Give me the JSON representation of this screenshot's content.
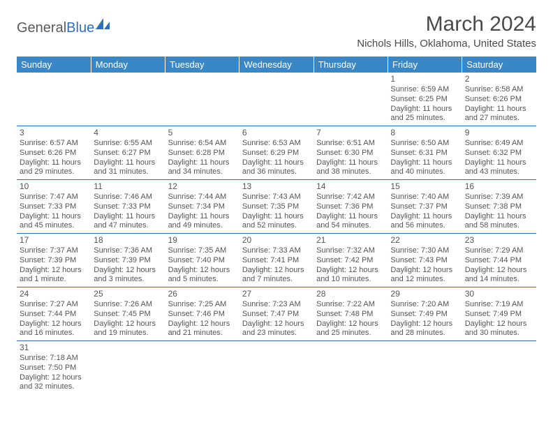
{
  "brand": {
    "text1": "General",
    "text2": "Blue",
    "logo_color": "#2f6fb5"
  },
  "title": "March 2024",
  "location": "Nichols Hills, Oklahoma, United States",
  "header_bg": "#3a87c8",
  "header_fg": "#ffffff",
  "border_color": "#2f6fb5",
  "text_color": "#555555",
  "days": [
    "Sunday",
    "Monday",
    "Tuesday",
    "Wednesday",
    "Thursday",
    "Friday",
    "Saturday"
  ],
  "weeks": [
    [
      null,
      null,
      null,
      null,
      null,
      {
        "n": "1",
        "sr": "Sunrise: 6:59 AM",
        "ss": "Sunset: 6:25 PM",
        "d1": "Daylight: 11 hours",
        "d2": "and 25 minutes."
      },
      {
        "n": "2",
        "sr": "Sunrise: 6:58 AM",
        "ss": "Sunset: 6:26 PM",
        "d1": "Daylight: 11 hours",
        "d2": "and 27 minutes."
      }
    ],
    [
      {
        "n": "3",
        "sr": "Sunrise: 6:57 AM",
        "ss": "Sunset: 6:26 PM",
        "d1": "Daylight: 11 hours",
        "d2": "and 29 minutes."
      },
      {
        "n": "4",
        "sr": "Sunrise: 6:55 AM",
        "ss": "Sunset: 6:27 PM",
        "d1": "Daylight: 11 hours",
        "d2": "and 31 minutes."
      },
      {
        "n": "5",
        "sr": "Sunrise: 6:54 AM",
        "ss": "Sunset: 6:28 PM",
        "d1": "Daylight: 11 hours",
        "d2": "and 34 minutes."
      },
      {
        "n": "6",
        "sr": "Sunrise: 6:53 AM",
        "ss": "Sunset: 6:29 PM",
        "d1": "Daylight: 11 hours",
        "d2": "and 36 minutes."
      },
      {
        "n": "7",
        "sr": "Sunrise: 6:51 AM",
        "ss": "Sunset: 6:30 PM",
        "d1": "Daylight: 11 hours",
        "d2": "and 38 minutes."
      },
      {
        "n": "8",
        "sr": "Sunrise: 6:50 AM",
        "ss": "Sunset: 6:31 PM",
        "d1": "Daylight: 11 hours",
        "d2": "and 40 minutes."
      },
      {
        "n": "9",
        "sr": "Sunrise: 6:49 AM",
        "ss": "Sunset: 6:32 PM",
        "d1": "Daylight: 11 hours",
        "d2": "and 43 minutes."
      }
    ],
    [
      {
        "n": "10",
        "sr": "Sunrise: 7:47 AM",
        "ss": "Sunset: 7:33 PM",
        "d1": "Daylight: 11 hours",
        "d2": "and 45 minutes."
      },
      {
        "n": "11",
        "sr": "Sunrise: 7:46 AM",
        "ss": "Sunset: 7:33 PM",
        "d1": "Daylight: 11 hours",
        "d2": "and 47 minutes."
      },
      {
        "n": "12",
        "sr": "Sunrise: 7:44 AM",
        "ss": "Sunset: 7:34 PM",
        "d1": "Daylight: 11 hours",
        "d2": "and 49 minutes."
      },
      {
        "n": "13",
        "sr": "Sunrise: 7:43 AM",
        "ss": "Sunset: 7:35 PM",
        "d1": "Daylight: 11 hours",
        "d2": "and 52 minutes."
      },
      {
        "n": "14",
        "sr": "Sunrise: 7:42 AM",
        "ss": "Sunset: 7:36 PM",
        "d1": "Daylight: 11 hours",
        "d2": "and 54 minutes."
      },
      {
        "n": "15",
        "sr": "Sunrise: 7:40 AM",
        "ss": "Sunset: 7:37 PM",
        "d1": "Daylight: 11 hours",
        "d2": "and 56 minutes."
      },
      {
        "n": "16",
        "sr": "Sunrise: 7:39 AM",
        "ss": "Sunset: 7:38 PM",
        "d1": "Daylight: 11 hours",
        "d2": "and 58 minutes."
      }
    ],
    [
      {
        "n": "17",
        "sr": "Sunrise: 7:37 AM",
        "ss": "Sunset: 7:39 PM",
        "d1": "Daylight: 12 hours",
        "d2": "and 1 minute."
      },
      {
        "n": "18",
        "sr": "Sunrise: 7:36 AM",
        "ss": "Sunset: 7:39 PM",
        "d1": "Daylight: 12 hours",
        "d2": "and 3 minutes."
      },
      {
        "n": "19",
        "sr": "Sunrise: 7:35 AM",
        "ss": "Sunset: 7:40 PM",
        "d1": "Daylight: 12 hours",
        "d2": "and 5 minutes."
      },
      {
        "n": "20",
        "sr": "Sunrise: 7:33 AM",
        "ss": "Sunset: 7:41 PM",
        "d1": "Daylight: 12 hours",
        "d2": "and 7 minutes."
      },
      {
        "n": "21",
        "sr": "Sunrise: 7:32 AM",
        "ss": "Sunset: 7:42 PM",
        "d1": "Daylight: 12 hours",
        "d2": "and 10 minutes."
      },
      {
        "n": "22",
        "sr": "Sunrise: 7:30 AM",
        "ss": "Sunset: 7:43 PM",
        "d1": "Daylight: 12 hours",
        "d2": "and 12 minutes."
      },
      {
        "n": "23",
        "sr": "Sunrise: 7:29 AM",
        "ss": "Sunset: 7:44 PM",
        "d1": "Daylight: 12 hours",
        "d2": "and 14 minutes."
      }
    ],
    [
      {
        "n": "24",
        "sr": "Sunrise: 7:27 AM",
        "ss": "Sunset: 7:44 PM",
        "d1": "Daylight: 12 hours",
        "d2": "and 16 minutes."
      },
      {
        "n": "25",
        "sr": "Sunrise: 7:26 AM",
        "ss": "Sunset: 7:45 PM",
        "d1": "Daylight: 12 hours",
        "d2": "and 19 minutes."
      },
      {
        "n": "26",
        "sr": "Sunrise: 7:25 AM",
        "ss": "Sunset: 7:46 PM",
        "d1": "Daylight: 12 hours",
        "d2": "and 21 minutes."
      },
      {
        "n": "27",
        "sr": "Sunrise: 7:23 AM",
        "ss": "Sunset: 7:47 PM",
        "d1": "Daylight: 12 hours",
        "d2": "and 23 minutes."
      },
      {
        "n": "28",
        "sr": "Sunrise: 7:22 AM",
        "ss": "Sunset: 7:48 PM",
        "d1": "Daylight: 12 hours",
        "d2": "and 25 minutes."
      },
      {
        "n": "29",
        "sr": "Sunrise: 7:20 AM",
        "ss": "Sunset: 7:49 PM",
        "d1": "Daylight: 12 hours",
        "d2": "and 28 minutes."
      },
      {
        "n": "30",
        "sr": "Sunrise: 7:19 AM",
        "ss": "Sunset: 7:49 PM",
        "d1": "Daylight: 12 hours",
        "d2": "and 30 minutes."
      }
    ],
    [
      {
        "n": "31",
        "sr": "Sunrise: 7:18 AM",
        "ss": "Sunset: 7:50 PM",
        "d1": "Daylight: 12 hours",
        "d2": "and 32 minutes."
      },
      null,
      null,
      null,
      null,
      null,
      null
    ]
  ]
}
